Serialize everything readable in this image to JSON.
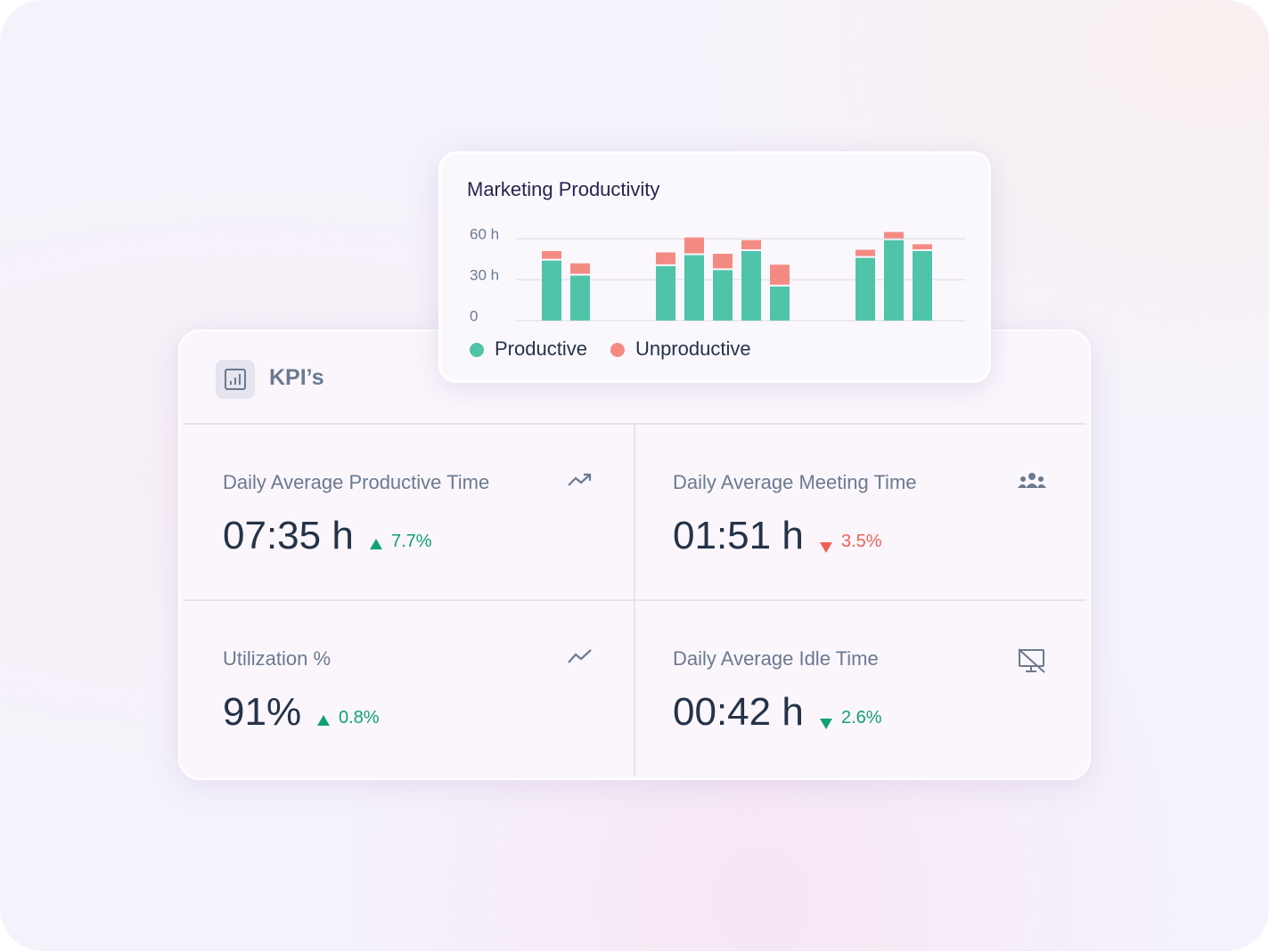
{
  "chart_data": {
    "type": "stacked-bar",
    "title": "Marketing Productivity",
    "categories": [
      null,
      null,
      null,
      null,
      null,
      null,
      null,
      null,
      null,
      null,
      null,
      null,
      null,
      null
    ],
    "series": [
      {
        "name": "Productive",
        "color": "#4fc4a8",
        "values": [
          44,
          33,
          null,
          null,
          40,
          48,
          37,
          51,
          25,
          null,
          null,
          46,
          59,
          51
        ]
      },
      {
        "name": "Unproductive",
        "color": "#f48b83",
        "values": [
          7,
          9,
          null,
          null,
          10,
          13,
          12,
          8,
          16,
          null,
          null,
          6,
          6,
          5
        ]
      }
    ],
    "ylim": [
      0,
      66
    ],
    "yticks": [
      0,
      {
        "value": 30,
        "label": "30 h"
      },
      {
        "value": 60,
        "label": "60 h"
      }
    ],
    "grid": true,
    "legend": "bottom"
  },
  "kpis": {
    "title": "KPI’s",
    "cards": [
      {
        "label": "Daily Average Productive Time",
        "value": "07:35 h",
        "change": "7.7%",
        "trend": "up",
        "color": "#12a176"
      },
      {
        "label": "Daily Average Meeting Time",
        "value": "01:51 h",
        "change": "3.5%",
        "trend": "down",
        "color": "#f0605a"
      },
      {
        "label": "Utilization %",
        "value": "91%",
        "change": "0.8%",
        "trend": "up",
        "color": "#12a176"
      },
      {
        "label": "Daily Average Idle Time",
        "value": "00:42 h",
        "change": "2.6%",
        "trend": "down",
        "color": "#12a176"
      }
    ]
  }
}
